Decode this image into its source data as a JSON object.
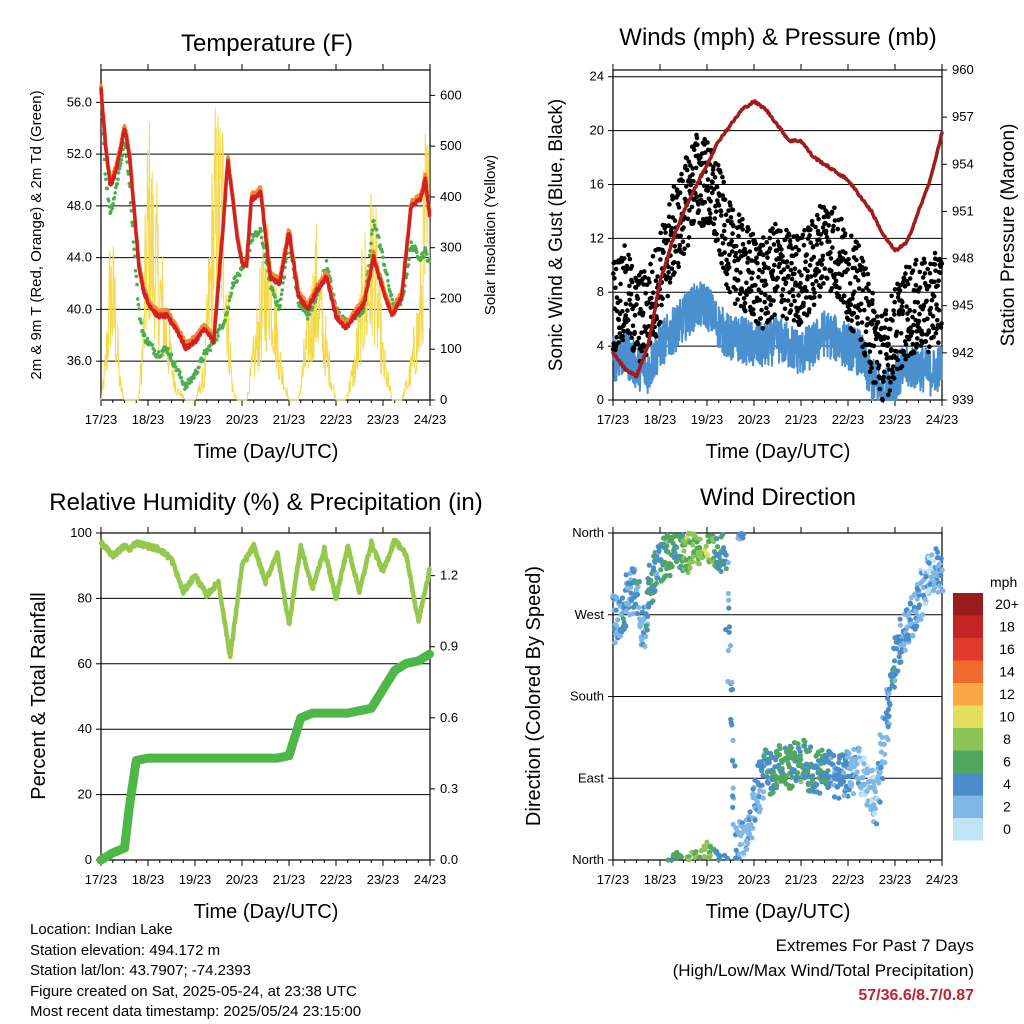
{
  "x_ticks": [
    "17/23",
    "18/23",
    "19/23",
    "20/23",
    "21/23",
    "22/23",
    "23/23",
    "24/23"
  ],
  "x_label": "Time (Day/UTC)",
  "colors": {
    "t2m": "#d42020",
    "t9m": "#f08a30",
    "td": "#4cae4c",
    "solar": "#f5d94a",
    "gust": "#000000",
    "wind": "#4a90cf",
    "pressure": "#a01c1c",
    "rh": "#95c84d",
    "precip": "#4db848"
  },
  "panels": {
    "temperature": {
      "title": "Temperature (F)",
      "ylabel_left": "2m & 9m T (Red, Orange) & 2m Td (Green)",
      "ylabel_right": "Solar Insolation (Yellow)",
      "yticks_left": [
        "56.0",
        "52.0",
        "48.0",
        "44.0",
        "40.0",
        "36.0"
      ],
      "yticks_right": [
        "600",
        "500",
        "400",
        "300",
        "200",
        "100",
        "0"
      ]
    },
    "winds": {
      "title": "Winds (mph) & Pressure (mb)",
      "ylabel_left": "Sonic Wind & Gust (Blue, Black)",
      "ylabel_right": "Station Pressure (Maroon)",
      "yticks_left": [
        "24",
        "20",
        "16",
        "12",
        "8",
        "4",
        "0"
      ],
      "yticks_right": [
        "960",
        "957",
        "954",
        "951",
        "948",
        "945",
        "942",
        "939"
      ]
    },
    "humidity": {
      "title": "Relative Humidity (%) & Precipitation (in)",
      "ylabel_left": "Percent & Total Rainfall",
      "yticks_left": [
        "100",
        "80",
        "60",
        "40",
        "20",
        "0"
      ],
      "yticks_right": [
        "1.2",
        "0.9",
        "0.6",
        "0.3",
        "0.0"
      ]
    },
    "direction": {
      "title": "Wind Direction",
      "ylabel_left": "Direction (Colored By Speed)",
      "yticks_left": [
        "North",
        "West",
        "South",
        "East",
        "North"
      ],
      "legend_title": "mph",
      "legend_labels": [
        "20+",
        "18",
        "16",
        "14",
        "12",
        "10",
        "8",
        "6",
        "4",
        "2",
        "0"
      ],
      "legend_colors": [
        "#9b1c1c",
        "#c42424",
        "#e03a2c",
        "#f06a30",
        "#f9a845",
        "#e4de5c",
        "#8cc456",
        "#4fa85e",
        "#4a8dc8",
        "#7fb8e6",
        "#bfe3f7"
      ]
    }
  },
  "chart_data": [
    {
      "type": "line",
      "title": "Temperature (F)",
      "xlabel": "Time (Day/UTC)",
      "ylabel": "2m & 9m T (Red, Orange) & 2m Td (Green)",
      "ylabel_right": "Solar Insolation (Yellow)",
      "ylim": [
        33.0,
        58.5
      ],
      "ylim_right": [
        0,
        650
      ],
      "x": [
        17.0,
        17.1,
        17.2,
        17.3,
        17.4,
        17.5,
        17.6,
        17.7,
        17.8,
        17.9,
        18.0,
        18.2,
        18.4,
        18.6,
        18.8,
        19.0,
        19.2,
        19.4,
        19.6,
        19.7,
        19.8,
        19.9,
        20.0,
        20.1,
        20.2,
        20.4,
        20.6,
        20.8,
        21.0,
        21.2,
        21.4,
        21.6,
        21.8,
        22.0,
        22.2,
        22.4,
        22.6,
        22.8,
        23.0,
        23.2,
        23.4,
        23.6,
        23.8,
        23.9,
        24.0
      ],
      "series": [
        {
          "name": "2m T (Red)",
          "values": [
            57.0,
            52.5,
            49.5,
            50.5,
            52.0,
            54.0,
            52.0,
            48.0,
            43.5,
            41.5,
            40.5,
            39.5,
            39.5,
            38.5,
            37.0,
            37.5,
            38.5,
            37.5,
            46.5,
            51.5,
            48.5,
            45.5,
            43.5,
            43.5,
            48.5,
            49.0,
            42.5,
            42.0,
            46.0,
            41.0,
            40.0,
            41.5,
            42.5,
            39.5,
            38.5,
            39.5,
            40.5,
            44.0,
            41.5,
            39.5,
            41.0,
            48.0,
            48.5,
            50.0,
            47.0
          ]
        },
        {
          "name": "9m T (Orange)",
          "values": [
            57.2,
            52.8,
            49.8,
            50.8,
            52.3,
            54.3,
            52.3,
            48.2,
            43.8,
            41.8,
            40.8,
            39.8,
            39.8,
            38.8,
            37.3,
            37.8,
            38.8,
            37.8,
            46.8,
            51.8,
            48.8,
            45.8,
            43.8,
            43.8,
            48.8,
            49.3,
            42.8,
            42.3,
            46.3,
            41.3,
            40.3,
            41.8,
            42.8,
            39.8,
            38.8,
            39.8,
            40.8,
            44.3,
            41.8,
            39.8,
            41.3,
            48.3,
            48.8,
            50.3,
            47.3
          ]
        },
        {
          "name": "2m Td (Green)",
          "values": [
            57.0,
            50.0,
            47.5,
            49.0,
            51.0,
            53.0,
            50.0,
            45.0,
            40.0,
            38.0,
            37.5,
            36.5,
            37.0,
            35.5,
            34.0,
            35.0,
            36.5,
            37.5,
            39.0,
            40.0,
            42.0,
            42.5,
            43.0,
            43.5,
            45.5,
            46.0,
            42.0,
            40.0,
            45.5,
            40.5,
            39.5,
            41.0,
            43.5,
            40.0,
            39.0,
            39.5,
            40.0,
            47.0,
            44.0,
            40.5,
            40.5,
            45.0,
            44.0,
            44.5,
            43.5
          ]
        },
        {
          "name": "Solar Insolation (Yellow)",
          "axis": "right",
          "values": [
            0,
            120,
            380,
            300,
            60,
            0,
            0,
            0,
            0,
            200,
            620,
            420,
            220,
            40,
            0,
            0,
            80,
            600,
            650,
            260,
            40,
            0,
            0,
            0,
            90,
            280,
            450,
            130,
            0,
            0,
            210,
            380,
            150,
            0,
            0,
            110,
            360,
            470,
            130,
            0,
            0,
            100,
            300,
            580,
            560
          ]
        }
      ]
    },
    {
      "type": "line",
      "title": "Winds (mph) & Pressure (mb)",
      "xlabel": "Time (Day/UTC)",
      "ylabel": "Sonic Wind & Gust (Blue, Black)",
      "ylabel_right": "Station Pressure (Maroon)",
      "ylim": [
        0,
        24.5
      ],
      "ylim_right": [
        939,
        960
      ],
      "x": [
        17.0,
        17.25,
        17.5,
        17.75,
        18.0,
        18.25,
        18.5,
        18.75,
        19.0,
        19.25,
        19.5,
        19.75,
        20.0,
        20.25,
        20.5,
        20.75,
        21.0,
        21.25,
        21.5,
        21.75,
        22.0,
        22.25,
        22.5,
        22.75,
        23.0,
        23.25,
        23.5,
        23.75,
        24.0
      ],
      "series": [
        {
          "name": "Sonic Wind (Blue)",
          "values": [
            3.0,
            3.5,
            2.5,
            2.2,
            4.0,
            5.0,
            6.0,
            7.0,
            7.0,
            5.5,
            4.5,
            4.5,
            4.0,
            4.0,
            4.5,
            4.0,
            3.5,
            4.0,
            5.0,
            4.5,
            4.0,
            3.5,
            1.5,
            0.5,
            1.5,
            2.5,
            2.5,
            2.0,
            2.5
          ]
        },
        {
          "name": "Gust (Black)",
          "values": [
            7.0,
            8.0,
            6.0,
            6.5,
            9.0,
            12.0,
            14.0,
            16.5,
            16.0,
            14.0,
            11.0,
            10.0,
            9.0,
            8.5,
            10.0,
            9.0,
            9.0,
            10.0,
            12.0,
            11.0,
            9.0,
            8.0,
            5.0,
            3.0,
            5.0,
            6.5,
            7.0,
            7.0,
            8.0
          ]
        },
        {
          "name": "Station Pressure (Maroon)",
          "axis": "right",
          "values": [
            942.0,
            941.0,
            940.5,
            942.5,
            946.5,
            949.0,
            951.0,
            952.5,
            954.0,
            955.5,
            956.5,
            957.5,
            958.0,
            957.5,
            956.5,
            955.5,
            955.5,
            954.5,
            954.0,
            953.5,
            953.0,
            952.0,
            951.0,
            949.5,
            948.5,
            949.0,
            951.0,
            953.0,
            956.0
          ]
        }
      ]
    },
    {
      "type": "line",
      "title": "Relative Humidity (%) & Precipitation (in)",
      "xlabel": "Time (Day/UTC)",
      "ylabel": "Percent & Total Rainfall",
      "ylim": [
        0,
        100
      ],
      "ylim_right": [
        0,
        1.38
      ],
      "x": [
        17.0,
        17.25,
        17.5,
        17.6,
        17.75,
        18.0,
        18.25,
        18.5,
        18.75,
        19.0,
        19.25,
        19.5,
        19.75,
        20.0,
        20.25,
        20.5,
        20.75,
        21.0,
        21.25,
        21.5,
        21.75,
        22.0,
        22.25,
        22.5,
        22.75,
        23.0,
        23.25,
        23.5,
        23.75,
        24.0
      ],
      "series": [
        {
          "name": "Relative Humidity",
          "values": [
            97,
            93,
            96,
            95,
            97,
            96,
            95,
            92,
            82,
            87,
            81,
            85,
            62,
            90,
            96,
            85,
            94,
            72,
            96,
            83,
            95,
            80,
            96,
            82,
            97,
            88,
            98,
            93,
            73,
            89
          ]
        },
        {
          "name": "Total Precipitation",
          "axis": "right",
          "values": [
            0.0,
            0.03,
            0.05,
            0.22,
            0.42,
            0.43,
            0.43,
            0.43,
            0.43,
            0.43,
            0.43,
            0.43,
            0.43,
            0.43,
            0.43,
            0.43,
            0.43,
            0.44,
            0.6,
            0.62,
            0.62,
            0.62,
            0.62,
            0.63,
            0.64,
            0.72,
            0.8,
            0.83,
            0.84,
            0.87
          ]
        }
      ]
    },
    {
      "type": "scatter",
      "title": "Wind Direction",
      "xlabel": "Time (Day/UTC)",
      "ylabel": "Direction (Colored By Speed)",
      "yticks": [
        "North",
        "West",
        "South",
        "East",
        "North"
      ],
      "ylim_deg": [
        0,
        360
      ],
      "x": [
        17.0,
        17.1,
        17.2,
        17.3,
        17.5,
        17.6,
        17.8,
        17.9,
        18.1,
        18.2,
        18.4,
        18.6,
        18.8,
        19.0,
        19.2,
        19.4,
        19.6,
        19.8,
        20.0,
        20.2,
        20.4,
        20.6,
        20.8,
        21.0,
        21.2,
        21.4,
        21.6,
        21.8,
        22.0,
        22.2,
        22.4,
        22.6,
        22.8,
        23.0,
        23.2,
        23.4,
        23.6,
        23.8,
        24.0
      ],
      "series": [
        {
          "name": "Direction (deg)",
          "values": [
            280,
            260,
            265,
            290,
            300,
            250,
            300,
            320,
            330,
            340,
            345,
            340,
            350,
            355,
            345,
            340,
            20,
            15,
            60,
            100,
            95,
            105,
            100,
            110,
            100,
            95,
            100,
            90,
            95,
            100,
            85,
            60,
            150,
            220,
            250,
            270,
            300,
            320,
            315
          ]
        },
        {
          "name": "Speed (mph)",
          "values": [
            2,
            3,
            4,
            3,
            4,
            3,
            5,
            4,
            5,
            6,
            5,
            8,
            7,
            8,
            5,
            4,
            3,
            2,
            3,
            4,
            5,
            6,
            5,
            6,
            5,
            5,
            4,
            4,
            3,
            2,
            1,
            2,
            3,
            4,
            3,
            3,
            2,
            2,
            3
          ]
        }
      ],
      "legend_title": "mph",
      "legend_labels": [
        "20+",
        "18",
        "16",
        "14",
        "12",
        "10",
        "8",
        "6",
        "4",
        "2",
        "0"
      ]
    }
  ],
  "footer": {
    "location": "Location: Indian Lake",
    "elevation": "Station elevation: 494.172 m",
    "latlon": "Station lat/lon: 43.7907; -74.2393",
    "created": "Figure created on Sat, 2025-05-24, at 23:38 UTC",
    "recent": "Most recent data timestamp: 2025/05/24 23:15:00"
  },
  "extremes": {
    "heading": "Extremes For Past 7 Days",
    "subheading": "(High/Low/Max Wind/Total Precipitation)",
    "value": "57/36.6/8.7/0.87"
  }
}
